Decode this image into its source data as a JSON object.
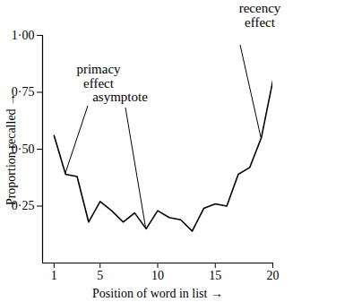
{
  "chart_data": {
    "type": "line",
    "x_label": "Position of word in list",
    "y_label": "Proportion recalled",
    "x": [
      1,
      2,
      3,
      4,
      5,
      6,
      7,
      8,
      9,
      10,
      11,
      12,
      13,
      14,
      15,
      16,
      17,
      18,
      19,
      20
    ],
    "values": [
      0.56,
      0.39,
      0.38,
      0.18,
      0.27,
      0.23,
      0.18,
      0.22,
      0.15,
      0.23,
      0.2,
      0.19,
      0.14,
      0.24,
      0.26,
      0.25,
      0.39,
      0.42,
      0.55,
      0.8
    ],
    "color": "#000000",
    "xlim": [
      0,
      20
    ],
    "xticks": [
      1,
      5,
      10,
      15,
      20
    ],
    "ylim": [
      0,
      1
    ],
    "yticks": [
      {
        "value": 0.25,
        "label": "0·25"
      },
      {
        "value": 0.5,
        "label": "0·50"
      },
      {
        "value": 0.75,
        "label": "0·75"
      },
      {
        "value": 1,
        "label": "1·00"
      }
    ],
    "grid": false,
    "annotations": [
      {
        "text": "primacy effect",
        "x": 2
      },
      {
        "text": "asymptote",
        "x": 9
      },
      {
        "text": "recency effect",
        "x": 19
      }
    ]
  }
}
